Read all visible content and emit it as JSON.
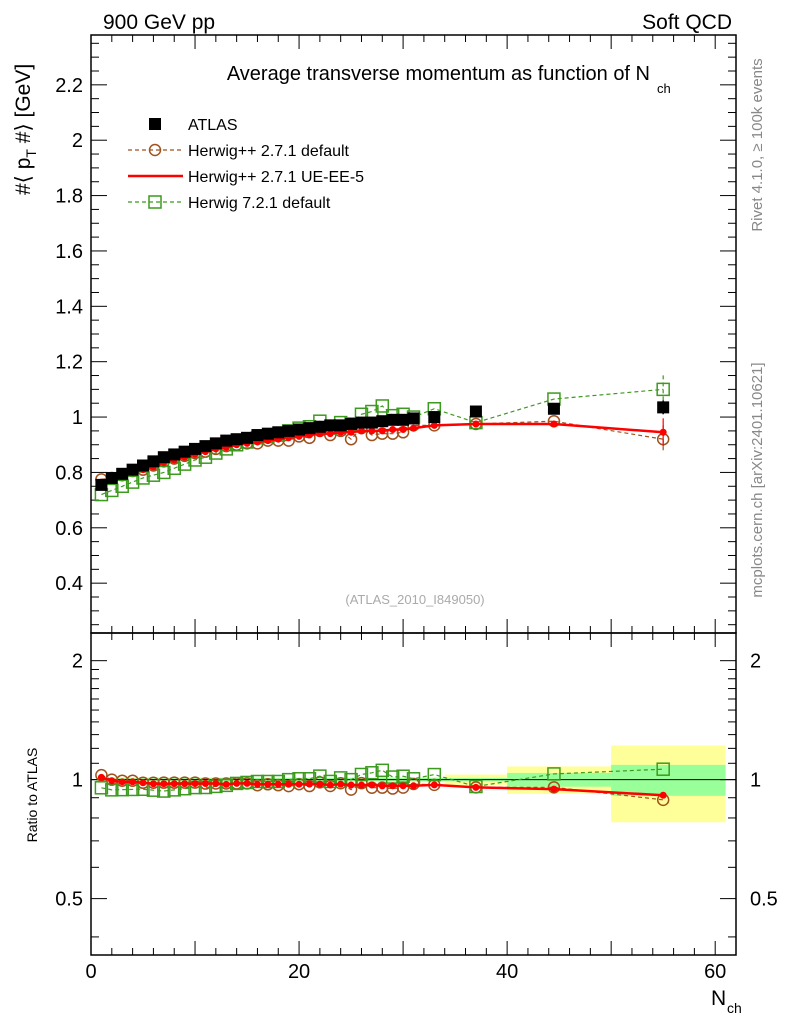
{
  "header": {
    "left": "900 GeV pp",
    "right": "Soft QCD"
  },
  "side": {
    "rivet": "Rivet 4.1.0, ≥ 100k events",
    "mcplots": "mcplots.cern.ch [arXiv:2401.10621]"
  },
  "main": {
    "title": "Average transverse momentum as function of N",
    "title_sub": "ch",
    "ylabel": "#⟨ p",
    "ylabel_sub": "T",
    "ylabel_tail": " #⟩ [GeV]",
    "watermark": "(ATLAS_2010_I849050)"
  },
  "ratio": {
    "ylabel": "Ratio to ATLAS"
  },
  "xaxis": {
    "label": "N",
    "label_sub": "ch"
  },
  "legend": [
    {
      "label": "ATLAS",
      "color": "#000000"
    },
    {
      "label": "Herwig++ 2.7.1 default",
      "color": "#a0521e"
    },
    {
      "label": "Herwig++ 2.7.1 UE-EE-5",
      "color": "#ff0000"
    },
    {
      "label": "Herwig 7.2.1 default",
      "color": "#3c9a1e"
    }
  ],
  "chart_data": {
    "type": "line",
    "xlim": [
      0,
      62
    ],
    "ylim": [
      0.22,
      2.38
    ],
    "ratio_ylim": [
      0.36,
      2.35
    ],
    "ratio_scale": "log",
    "xticks": [
      "0",
      "20",
      "40",
      "60"
    ],
    "yticks": [
      "0.4",
      "0.6",
      "0.8",
      "1",
      "1.2",
      "1.4",
      "1.6",
      "1.8",
      "2",
      "2.2"
    ],
    "ratio_yticks": [
      "0.5",
      "1",
      "2"
    ],
    "x": [
      1,
      2,
      3,
      4,
      5,
      6,
      7,
      8,
      9,
      10,
      11,
      12,
      13,
      14,
      15,
      16,
      17,
      18,
      19,
      20,
      21,
      22,
      23,
      24,
      25,
      26,
      27,
      28,
      29,
      30,
      31,
      33,
      37,
      44.5,
      55
    ],
    "series": [
      {
        "name": "ATLAS",
        "values": [
          0.755,
          0.78,
          0.795,
          0.81,
          0.825,
          0.84,
          0.855,
          0.865,
          0.875,
          0.885,
          0.895,
          0.905,
          0.915,
          0.92,
          0.925,
          0.935,
          0.94,
          0.945,
          0.95,
          0.955,
          0.96,
          0.965,
          0.97,
          0.97,
          0.975,
          0.98,
          0.98,
          0.985,
          0.99,
          0.99,
          0.995,
          1.0,
          1.02,
          1.03,
          1.035
        ]
      },
      {
        "name": "Herwig++ 2.7.1 default",
        "values": [
          0.775,
          0.78,
          0.79,
          0.805,
          0.81,
          0.825,
          0.84,
          0.85,
          0.86,
          0.87,
          0.875,
          0.885,
          0.895,
          0.9,
          0.905,
          0.905,
          0.915,
          0.915,
          0.915,
          0.93,
          0.925,
          0.95,
          0.935,
          0.95,
          0.92,
          0.96,
          0.935,
          0.94,
          0.94,
          0.945,
          0.97,
          0.97,
          0.975,
          0.985,
          0.92
        ]
      },
      {
        "name": "Herwig++ 2.7.1 UE-EE-5",
        "values": [
          0.765,
          0.775,
          0.785,
          0.8,
          0.81,
          0.82,
          0.835,
          0.845,
          0.855,
          0.865,
          0.875,
          0.885,
          0.89,
          0.9,
          0.905,
          0.91,
          0.915,
          0.92,
          0.925,
          0.93,
          0.935,
          0.94,
          0.94,
          0.945,
          0.945,
          0.95,
          0.95,
          0.95,
          0.955,
          0.955,
          0.96,
          0.97,
          0.975,
          0.975,
          0.945
        ]
      },
      {
        "name": "Herwig 7.2.1 default",
        "values": [
          0.72,
          0.735,
          0.75,
          0.765,
          0.78,
          0.79,
          0.8,
          0.815,
          0.83,
          0.845,
          0.855,
          0.87,
          0.885,
          0.9,
          0.91,
          0.925,
          0.93,
          0.935,
          0.95,
          0.96,
          0.965,
          0.985,
          0.96,
          0.98,
          0.975,
          1.01,
          1.02,
          1.04,
          1.005,
          1.01,
          1.0,
          1.03,
          0.98,
          1.065,
          1.1
        ]
      }
    ],
    "ratio_band_inner": [
      {
        "x0": 0.5,
        "x1": 40,
        "half": 0.01
      },
      {
        "x0": 40,
        "x1": 50,
        "half": 0.04
      },
      {
        "x0": 50,
        "x1": 61,
        "half": 0.09
      }
    ],
    "ratio_band_outer": [
      {
        "x0": 0.5,
        "x1": 34,
        "half": 0.015
      },
      {
        "x0": 34,
        "x1": 40,
        "half": 0.03
      },
      {
        "x0": 40,
        "x1": 50,
        "half": 0.08
      },
      {
        "x0": 50,
        "x1": 61,
        "half": 0.22
      }
    ]
  }
}
